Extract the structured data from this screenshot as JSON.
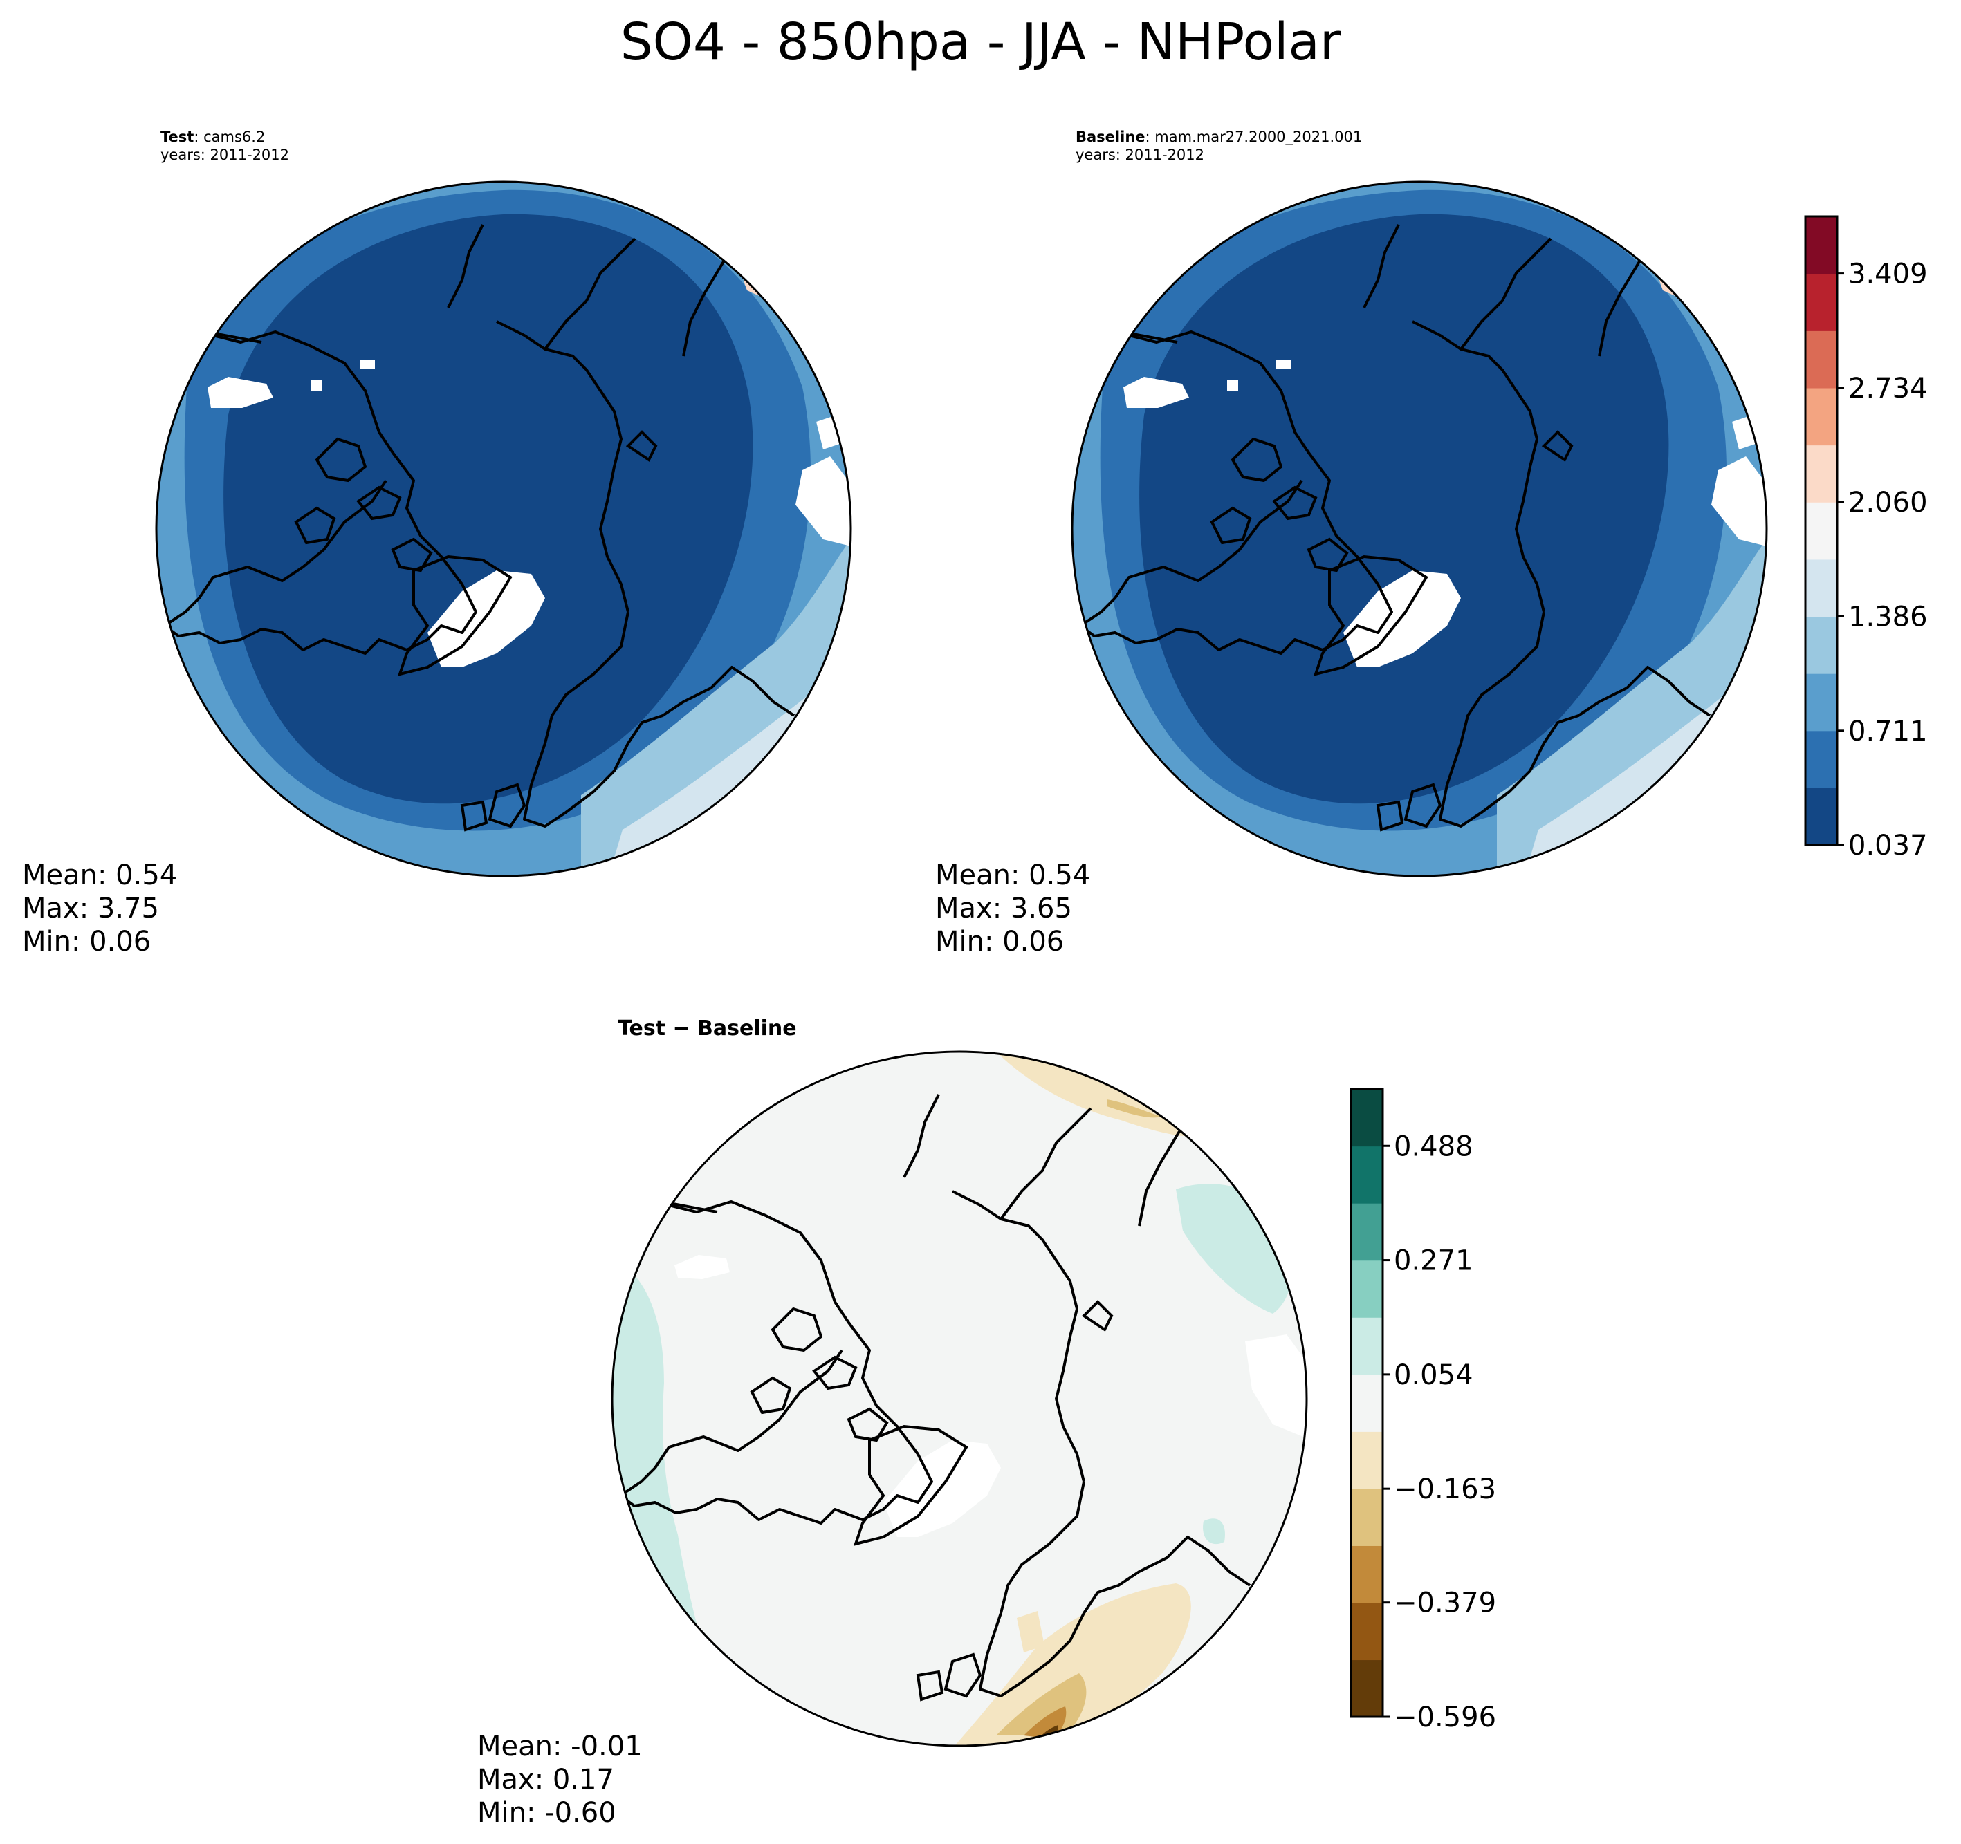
{
  "suptitle": "SO4 - 850hpa - JJA - NHPolar",
  "panels": {
    "test": {
      "label": "Test",
      "sep": ": ",
      "name": "cams6.2",
      "years": "years: 2011-2012",
      "stats": {
        "mean": "Mean:  0.54",
        "max": "Max:  3.75",
        "min": "Min:  0.06"
      }
    },
    "baseline": {
      "label": "Baseline",
      "sep": ": ",
      "name": "mam.mar27.2000_2021.001",
      "years": "years: 2011-2012",
      "stats": {
        "mean": "Mean:  0.54",
        "max": "Max:  3.65",
        "min": "Min:  0.06"
      }
    },
    "diff": {
      "title": "Test − Baseline",
      "stats": {
        "mean": "Mean: -0.01",
        "max": "Max:  0.17",
        "min": "Min: -0.60"
      }
    }
  },
  "chart_data": [
    {
      "type": "heatmap",
      "projection": "north-polar-stereographic",
      "title": "Test: cams6.2",
      "colormap": "RdBu_r",
      "colorbar_levels": [
        0.037,
        0.374,
        0.711,
        1.049,
        1.386,
        1.723,
        2.06,
        2.397,
        2.734,
        3.072,
        3.409,
        3.746
      ],
      "colorbar_ticks": [
        "0.037",
        "0.711",
        "1.386",
        "2.060",
        "2.734",
        "3.409"
      ],
      "stats": {
        "mean": 0.54,
        "max": 3.75,
        "min": 0.06
      }
    },
    {
      "type": "heatmap",
      "projection": "north-polar-stereographic",
      "title": "Baseline: mam.mar27.2000_2021.001",
      "colormap": "RdBu_r",
      "colorbar_levels": [
        0.037,
        0.374,
        0.711,
        1.049,
        1.386,
        1.723,
        2.06,
        2.397,
        2.734,
        3.072,
        3.409,
        3.746
      ],
      "colorbar_ticks": [
        "0.037",
        "0.711",
        "1.386",
        "2.060",
        "2.734",
        "3.409"
      ],
      "stats": {
        "mean": 0.54,
        "max": 3.65,
        "min": 0.06
      }
    },
    {
      "type": "heatmap",
      "projection": "north-polar-stereographic",
      "title": "Test − Baseline",
      "colormap": "BrBG",
      "colorbar_levels": [
        -0.596,
        -0.488,
        -0.379,
        -0.271,
        -0.163,
        -0.054,
        0.054,
        0.163,
        0.271,
        0.379,
        0.488,
        0.596
      ],
      "colorbar_ticks": [
        "0.488",
        "0.271",
        "0.054",
        "−0.163",
        "−0.379",
        "−0.596"
      ],
      "stats": {
        "mean": -0.01,
        "max": 0.17,
        "min": -0.6
      }
    }
  ],
  "colors": {
    "seq": [
      "#134785",
      "#2c70b1",
      "#5a9ecd",
      "#9ac8e0",
      "#d4e5ef",
      "#f5f5f5",
      "#fbdac8",
      "#f3a481",
      "#db6b55",
      "#b8222d",
      "#820a25"
    ],
    "div": [
      "#633c09",
      "#935713",
      "#c28a3a",
      "#dfc27e",
      "#f4e5c2",
      "#f3f5f4",
      "#cbebe5",
      "#87cfc1",
      "#42a093",
      "#117469",
      "#0a4c42"
    ]
  }
}
